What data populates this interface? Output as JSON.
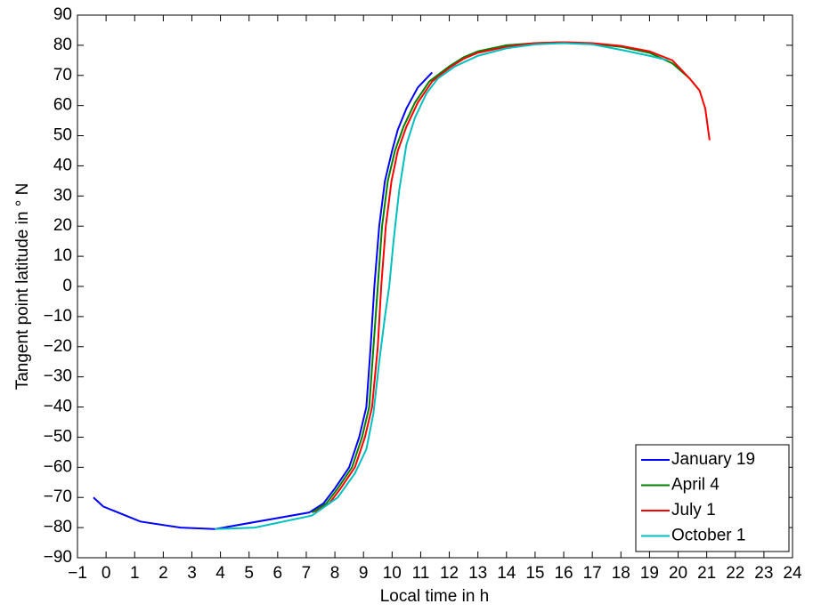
{
  "chart_data": {
    "type": "line",
    "xlabel": "Local time in h",
    "ylabel": "Tangent point latitude in ° N",
    "xlim": [
      -1,
      24
    ],
    "ylim": [
      -90,
      90
    ],
    "xticks": [
      {
        "value": -1,
        "label": "−1"
      },
      0,
      1,
      2,
      3,
      4,
      5,
      6,
      7,
      8,
      9,
      10,
      11,
      12,
      13,
      14,
      15,
      16,
      17,
      18,
      19,
      20,
      21,
      22,
      23,
      24
    ],
    "yticks": [
      {
        "value": -90,
        "label": "−90"
      },
      {
        "value": -80,
        "label": "−80"
      },
      {
        "value": -70,
        "label": "−70"
      },
      {
        "value": -60,
        "label": "−60"
      },
      {
        "value": -50,
        "label": "−50"
      },
      {
        "value": -40,
        "label": "−40"
      },
      {
        "value": -30,
        "label": "−30"
      },
      {
        "value": -20,
        "label": "−20"
      },
      {
        "value": -10,
        "label": "−10"
      },
      0,
      10,
      20,
      30,
      40,
      50,
      60,
      70,
      80,
      90
    ],
    "legend": "lower right",
    "series": [
      {
        "name": "January 19",
        "color": "#0000ff",
        "x": [
          -0.44,
          -0.1,
          1.2,
          2.6,
          3.8,
          7.1,
          7.6,
          8.0,
          8.5,
          8.85,
          9.1,
          9.25,
          9.38,
          9.55,
          9.75,
          10.0,
          10.2,
          10.5,
          10.9,
          11.4
        ],
        "y": [
          -70,
          -73,
          -78,
          -80,
          -80.5,
          -75,
          -72,
          -67,
          -60,
          -50,
          -40,
          -20,
          0,
          20,
          35,
          45,
          52,
          59,
          66,
          71
        ]
      },
      {
        "name": "April 4",
        "color": "#008000",
        "x": [
          7.2,
          7.7,
          8.1,
          8.6,
          8.95,
          9.2,
          9.35,
          9.5,
          9.65,
          9.85,
          10.1,
          10.4,
          10.8,
          11.3,
          12,
          12.5,
          13,
          14,
          15,
          16,
          17,
          18,
          19,
          19.8,
          20.4,
          20.75
        ],
        "y": [
          -75,
          -72,
          -67,
          -60,
          -50,
          -40,
          -20,
          0,
          20,
          35,
          45,
          53,
          61,
          68,
          73,
          76,
          78,
          80,
          80.7,
          81,
          80.5,
          79.5,
          77.5,
          74,
          69,
          65
        ]
      },
      {
        "name": "July 1",
        "color": "#ff0000",
        "x": [
          7.3,
          7.8,
          8.2,
          8.7,
          9.05,
          9.3,
          9.5,
          9.62,
          9.78,
          9.98,
          10.2,
          10.5,
          10.9,
          11.4,
          12,
          12.5,
          13,
          14,
          15,
          16,
          17,
          18,
          19,
          19.8,
          20.4,
          20.75,
          20.95,
          21.1
        ],
        "y": [
          -75,
          -72,
          -67,
          -60,
          -50,
          -40,
          -20,
          0,
          20,
          35,
          45,
          53,
          61,
          68,
          72.5,
          75.5,
          77.5,
          79.5,
          80.7,
          81,
          80.7,
          79.8,
          78,
          75,
          69,
          65,
          59,
          48.5
        ]
      },
      {
        "name": "October 1",
        "color": "#00bfbf",
        "x": [
          3.8,
          5.2,
          7.2,
          8.1,
          8.7,
          9.1,
          9.35,
          9.55,
          9.75,
          9.9,
          10.05,
          10.25,
          10.5,
          10.8,
          11.2,
          11.6,
          12.2,
          13,
          14,
          15,
          16,
          17,
          18,
          19,
          19.64
        ],
        "y": [
          -80.5,
          -80,
          -76,
          -70,
          -62,
          -54,
          -42,
          -25,
          -10,
          0,
          15,
          32,
          47,
          56,
          64,
          69,
          73,
          76.5,
          79,
          80.3,
          80.7,
          80.3,
          78.5,
          76.5,
          75
        ]
      }
    ]
  }
}
